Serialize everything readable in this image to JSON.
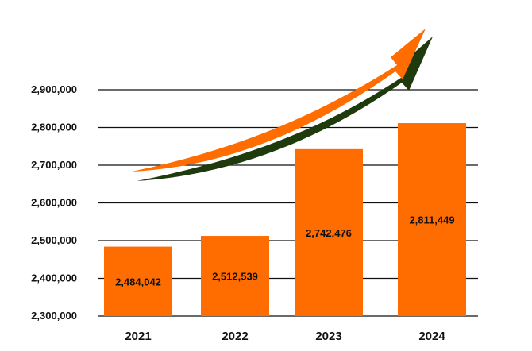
{
  "chart_data": {
    "type": "bar",
    "title": "",
    "xlabel": "",
    "ylabel": "",
    "categories": [
      "2021",
      "2022",
      "2023",
      "2024"
    ],
    "values": [
      2484042,
      2512539,
      2742476,
      2811449
    ],
    "value_labels": [
      "2,484,042",
      "2,512,539",
      "2,742,476",
      "2,811,449"
    ],
    "yticks": [
      2300000,
      2400000,
      2500000,
      2600000,
      2700000,
      2800000,
      2900000
    ],
    "ytick_labels": [
      "2,300,000",
      "2,400,000",
      "2,500,000",
      "2,600,000",
      "2,700,000",
      "2,800,000",
      "2,900,000"
    ],
    "ylim": [
      2300000,
      2900000
    ],
    "grid": true,
    "legend": "none",
    "colors": {
      "bar": "#ff6d00",
      "arrow": "#ff6d00",
      "arrow_shadow": "#1f3a0c",
      "grid": "#111111",
      "text": "#111111"
    },
    "annotation": "upward-trend-arrow"
  }
}
